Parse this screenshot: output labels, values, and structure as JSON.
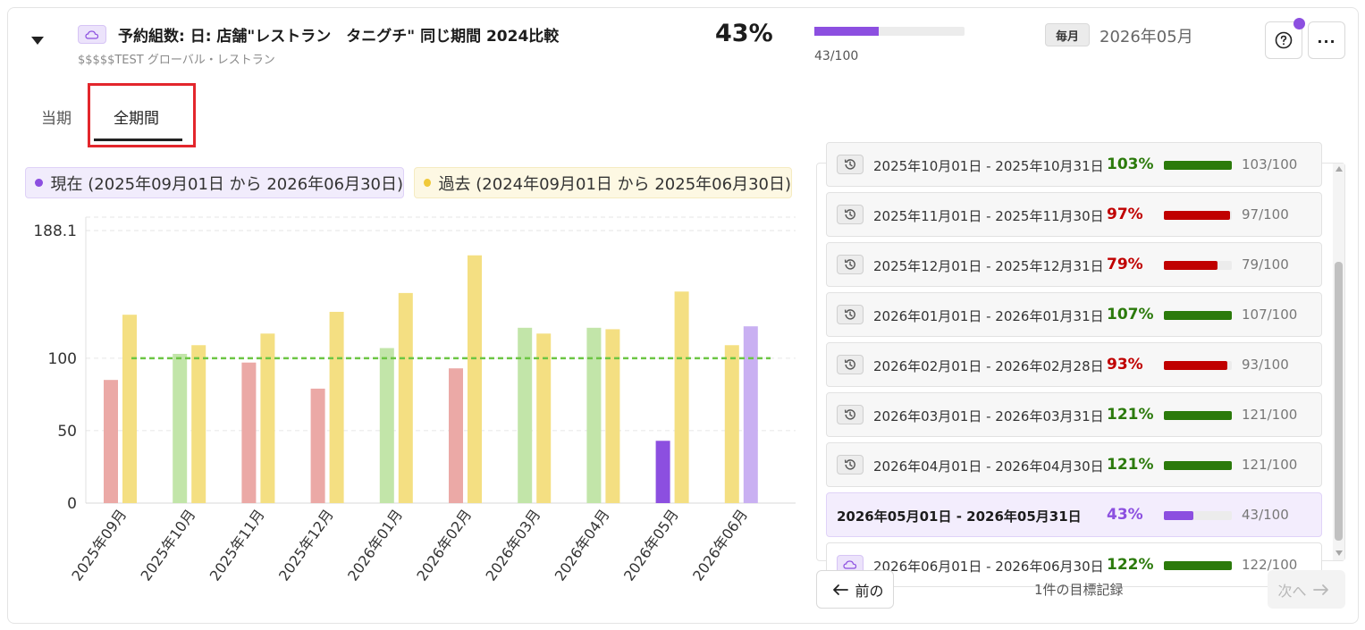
{
  "header": {
    "title": "予約組数: 日: 店舗\"レストラン　タニグチ\" 同じ期間 2024比較",
    "subtitle": "$$$$$TEST グローバル・レストラン",
    "percent": "43%",
    "progress": 0.43,
    "ratio": "43/100",
    "frequency": "毎月",
    "period": "2026年05月",
    "more_label": "..."
  },
  "tabs": [
    {
      "label": "当期"
    },
    {
      "label": "全期間"
    }
  ],
  "legend": {
    "current": "現在 (2025年09月01日 から 2026年06月30日)",
    "past": "過去 (2024年09月01日 から 2025年06月30日)"
  },
  "colors": {
    "accent": "#8c4fe0",
    "over_target": "#2b7a0b",
    "under_target": "#c00000",
    "target_line": "#6cc644"
  },
  "chart_data": {
    "type": "bar",
    "categories": [
      "2025年09月",
      "2025年10月",
      "2025年11月",
      "2025年12月",
      "2026年01月",
      "2026年02月",
      "2026年03月",
      "2026年04月",
      "2026年05月",
      "2026年06月"
    ],
    "series": [
      {
        "values": [
          85,
          103,
          97,
          79,
          107,
          93,
          121,
          121,
          43,
          122
        ]
      },
      {
        "values": [
          130,
          109,
          117,
          132,
          145,
          171,
          117,
          120,
          146,
          109
        ]
      }
    ],
    "target": 100,
    "yticks": [
      0,
      50,
      100,
      188.1
    ],
    "ylim": [
      0,
      188.1
    ],
    "grid": true
  },
  "list": {
    "rows": [
      {
        "range": "2025年10月01日 - 2025年10月31日",
        "percent": "103%",
        "value": 1.03,
        "ratio": "103/100",
        "status": "over",
        "icon": "history-icon"
      },
      {
        "range": "2025年11月01日 - 2025年11月30日",
        "percent": "97%",
        "value": 0.97,
        "ratio": "97/100",
        "status": "under",
        "icon": "history-icon"
      },
      {
        "range": "2025年12月01日 - 2025年12月31日",
        "percent": "79%",
        "value": 0.79,
        "ratio": "79/100",
        "status": "under",
        "icon": "history-icon"
      },
      {
        "range": "2026年01月01日 - 2026年01月31日",
        "percent": "107%",
        "value": 1.07,
        "ratio": "107/100",
        "status": "over",
        "icon": "history-icon"
      },
      {
        "range": "2026年02月01日 - 2026年02月28日",
        "percent": "93%",
        "value": 0.93,
        "ratio": "93/100",
        "status": "under",
        "icon": "history-icon"
      },
      {
        "range": "2026年03月01日 - 2026年03月31日",
        "percent": "121%",
        "value": 1.21,
        "ratio": "121/100",
        "status": "over",
        "icon": "history-icon"
      },
      {
        "range": "2026年04月01日 - 2026年04月30日",
        "percent": "121%",
        "value": 1.21,
        "ratio": "121/100",
        "status": "over",
        "icon": "history-icon"
      },
      {
        "range": "2026年05月01日 - 2026年05月31日",
        "percent": "43%",
        "value": 0.43,
        "ratio": "43/100",
        "status": "current",
        "icon": ""
      },
      {
        "range": "2026年06月01日 - 2026年06月30日",
        "percent": "122%",
        "value": 1.22,
        "ratio": "122/100",
        "status": "future",
        "icon": "cloud-icon"
      }
    ]
  },
  "pagination": {
    "prev": "前の",
    "next": "次へ",
    "count": "1件の目標記録"
  }
}
